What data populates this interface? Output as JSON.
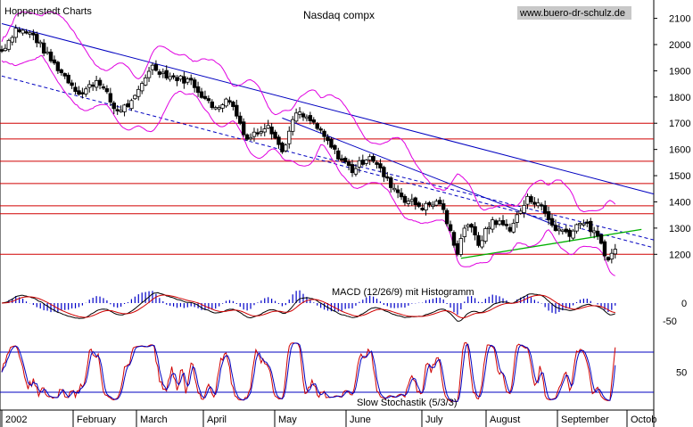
{
  "chart_data": [
    {
      "type": "candlestick",
      "source_label": "Hoppenstedt Charts",
      "title": "Nasdaq compx",
      "watermark": "www.buero-dr-schulz.de",
      "y_ticks": [
        1200,
        1300,
        1400,
        1500,
        1600,
        1700,
        1800,
        1900,
        2000,
        2100
      ],
      "ylim": [
        1150,
        2170
      ],
      "x_ticks": [
        "2002",
        "February",
        "March",
        "April",
        "May",
        "June",
        "July",
        "August",
        "September",
        "Octob"
      ],
      "horizontal_levels": [
        1200,
        1355,
        1385,
        1470,
        1555,
        1640,
        1700
      ],
      "colors": {
        "candle": "#000000",
        "bollinger": "#e000e0",
        "trend": "#0000c0",
        "level": "#d00000",
        "support": "#00b000"
      },
      "anchors": [
        {
          "d": 0,
          "p": 1975
        },
        {
          "d": 8,
          "p": 2060
        },
        {
          "d": 18,
          "p": 2035
        },
        {
          "d": 28,
          "p": 1940
        },
        {
          "d": 45,
          "p": 1810
        },
        {
          "d": 55,
          "p": 1870
        },
        {
          "d": 65,
          "p": 1745
        },
        {
          "d": 75,
          "p": 1780
        },
        {
          "d": 85,
          "p": 1920
        },
        {
          "d": 95,
          "p": 1880
        },
        {
          "d": 108,
          "p": 1860
        },
        {
          "d": 120,
          "p": 1760
        },
        {
          "d": 130,
          "p": 1790
        },
        {
          "d": 140,
          "p": 1640
        },
        {
          "d": 152,
          "p": 1700
        },
        {
          "d": 160,
          "p": 1590
        },
        {
          "d": 168,
          "p": 1740
        },
        {
          "d": 178,
          "p": 1700
        },
        {
          "d": 190,
          "p": 1590
        },
        {
          "d": 200,
          "p": 1520
        },
        {
          "d": 210,
          "p": 1580
        },
        {
          "d": 220,
          "p": 1480
        },
        {
          "d": 230,
          "p": 1410
        },
        {
          "d": 240,
          "p": 1380
        },
        {
          "d": 250,
          "p": 1400
        },
        {
          "d": 255,
          "p": 1300
        },
        {
          "d": 260,
          "p": 1210
        },
        {
          "d": 265,
          "p": 1330
        },
        {
          "d": 272,
          "p": 1240
        },
        {
          "d": 280,
          "p": 1330
        },
        {
          "d": 290,
          "p": 1300
        },
        {
          "d": 300,
          "p": 1410
        },
        {
          "d": 306,
          "p": 1400
        },
        {
          "d": 315,
          "p": 1300
        },
        {
          "d": 325,
          "p": 1280
        },
        {
          "d": 330,
          "p": 1330
        },
        {
          "d": 337,
          "p": 1290
        },
        {
          "d": 342,
          "p": 1240
        },
        {
          "d": 346,
          "p": 1175
        },
        {
          "d": 350,
          "p": 1225
        }
      ],
      "trendlines": [
        {
          "kind": "solid",
          "from": {
            "d": 0,
            "p": 2080
          },
          "to": {
            "d": 372,
            "p": 1430
          }
        },
        {
          "kind": "solid",
          "from": {
            "d": 160,
            "p": 1720
          },
          "to": {
            "d": 320,
            "p": 1300
          }
        },
        {
          "kind": "dashed",
          "from": {
            "d": 0,
            "p": 1880
          },
          "to": {
            "d": 372,
            "p": 1225
          }
        },
        {
          "kind": "dashed",
          "from": {
            "d": 180,
            "p": 1575
          },
          "to": {
            "d": 372,
            "p": 1255
          }
        },
        {
          "kind": "support",
          "from": {
            "d": 262,
            "p": 1185
          },
          "to": {
            "d": 365,
            "p": 1295
          }
        }
      ]
    },
    {
      "type": "line",
      "label": "MACD (12/26/9) mit Histogramm",
      "y_ticks": [
        0,
        -50
      ],
      "ylim": [
        -95,
        75
      ]
    },
    {
      "type": "line",
      "label": "Slow Stochastik (5/3/3)",
      "y_ticks": [
        50
      ],
      "ylim": [
        0,
        100
      ],
      "reference_lines": [
        20,
        80
      ]
    }
  ]
}
